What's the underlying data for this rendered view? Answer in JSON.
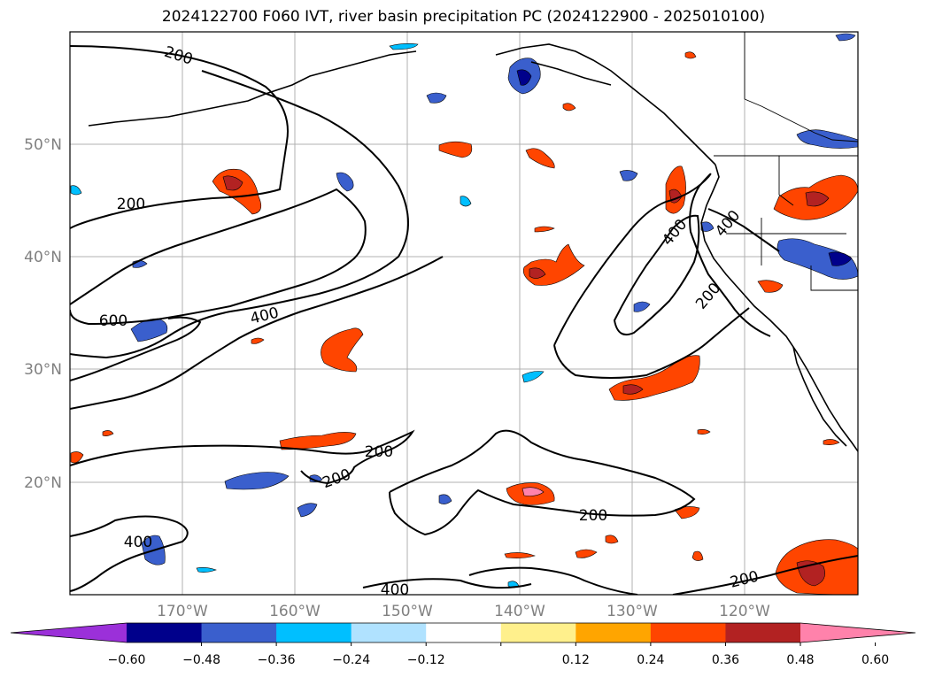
{
  "title": "2024122700 F060 IVT, river basin precipitation PC (2024122900 - 2025010100)",
  "map": {
    "lat_labels": [
      "50°N",
      "40°N",
      "30°N",
      "20°N"
    ],
    "lon_labels": [
      "170°W",
      "160°W",
      "150°W",
      "140°W",
      "130°W",
      "120°W"
    ],
    "ivt_contour_labels": [
      "200",
      "200",
      "600",
      "400",
      "400",
      "200",
      "200",
      "200",
      "200",
      "400",
      "400",
      "200",
      "400"
    ],
    "grid": true,
    "coastlines": true
  },
  "colorbar": {
    "tick_labels": [
      "−0.60",
      "−0.48",
      "−0.36",
      "−0.24",
      "−0.12",
      "0.12",
      "0.24",
      "0.36",
      "0.48",
      "0.60"
    ],
    "colors": [
      "#9b30d9",
      "#00008b",
      "#3a5fcd",
      "#00bfff",
      "#b0e2ff",
      "#ffffff",
      "#fff08c",
      "#ffa500",
      "#ff4500",
      "#b22222",
      "#ff82ab"
    ]
  }
}
